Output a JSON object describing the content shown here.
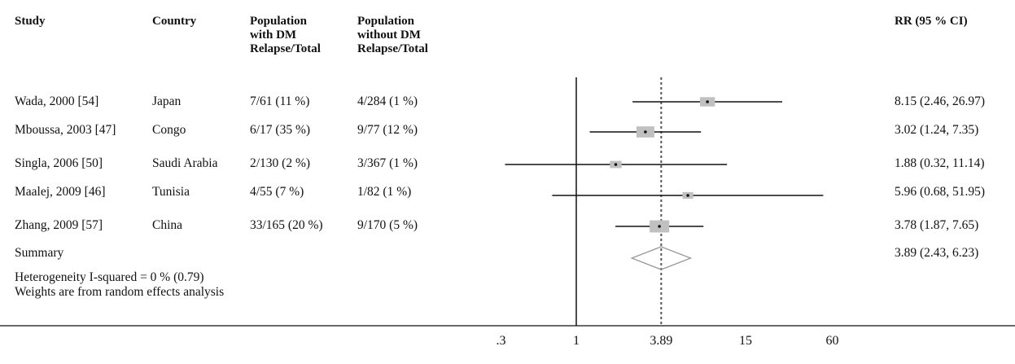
{
  "headers": {
    "study": "Study",
    "country": "Country",
    "with_dm": "Population\nwith DM\nRelapse/Total",
    "without_dm": "Population\nwithout DM\nRelapse/Total",
    "rr": "RR (95 % CI)"
  },
  "rows": [
    {
      "study": "Wada, 2000 [54]",
      "country": "Japan",
      "with_dm": "7/61 (11 %)",
      "without_dm": "4/284 (1 %)",
      "rr_text": "8.15 (2.46, 26.97)"
    },
    {
      "study": "Mboussa, 2003 [47]",
      "country": "Congo",
      "with_dm": "6/17 (35 %)",
      "without_dm": "9/77 (12 %)",
      "rr_text": "3.02 (1.24, 7.35)"
    },
    {
      "study": "Singla, 2006 [50]",
      "country": "Saudi Arabia",
      "with_dm": "2/130 (2 %)",
      "without_dm": "3/367 (1 %)",
      "rr_text": "1.88 (0.32, 11.14)"
    },
    {
      "study": "Maalej, 2009 [46]",
      "country": "Tunisia",
      "with_dm": "4/55 (7 %)",
      "without_dm": "1/82 (1 %)",
      "rr_text": "5.96 (0.68, 51.95)"
    },
    {
      "study": "Zhang, 2009 [57]",
      "country": "China",
      "with_dm": "33/165 (20 %)",
      "without_dm": "9/170 (5 %)",
      "rr_text": "3.78 (1.87, 7.65)"
    }
  ],
  "summary": {
    "label": "Summary",
    "rr_text": "3.89 (2.43, 6.23)"
  },
  "notes": {
    "heterogeneity": "Heterogeneity I-squared = 0 % (0.79)",
    "weights": "Weights are from random effects analysis"
  },
  "chart_data": {
    "type": "forest",
    "x_scale": "log",
    "xlim": [
      0.3,
      60
    ],
    "x_ticks": [
      ".3",
      "1",
      "3.89",
      "15",
      "60"
    ],
    "x_tick_values": [
      0.3,
      1,
      3.89,
      15,
      60
    ],
    "null_line": 1,
    "summary_line": 3.89,
    "studies": [
      {
        "label": "Wada, 2000 [54]",
        "rr": 8.15,
        "lower": 2.46,
        "upper": 26.97,
        "weight": 0.18
      },
      {
        "label": "Mboussa, 2003 [47]",
        "rr": 3.02,
        "lower": 1.24,
        "upper": 7.35,
        "weight": 0.3
      },
      {
        "label": "Singla, 2006 [50]",
        "rr": 1.88,
        "lower": 0.32,
        "upper": 11.14,
        "weight": 0.08
      },
      {
        "label": "Maalej, 2009 [46]",
        "rr": 5.96,
        "lower": 0.68,
        "upper": 51.95,
        "weight": 0.06
      },
      {
        "label": "Zhang, 2009 [57]",
        "rr": 3.78,
        "lower": 1.87,
        "upper": 7.65,
        "weight": 0.38
      }
    ],
    "summary": {
      "rr": 3.89,
      "lower": 2.43,
      "upper": 6.23
    },
    "colors": {
      "box": "#c0c0c0",
      "line": "#111111",
      "diamond": "#999999",
      "dotted": "#555555"
    }
  }
}
